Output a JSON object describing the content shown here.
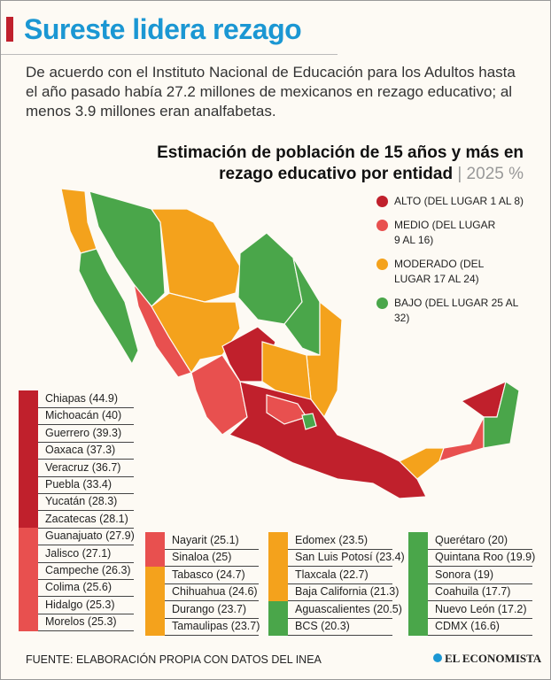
{
  "header": {
    "title": "Sureste lidera rezago",
    "intro": "De acuerdo con el Instituto Nacional de Educación para los Adultos hasta el año pasado había 27.2 millones de mexicanos en rezago educativo; al menos 3.9 millones eran analfabetas."
  },
  "map": {
    "title_line1": "Estimación de población de 15 años y más en",
    "title_line2": "rezago educativo por entidad",
    "title_year": "| 2025 %",
    "legend": [
      {
        "label": "ALTO (DEL LUGAR 1 AL 8)",
        "color": "#c0202c"
      },
      {
        "label": "MEDIO (DEL LUGAR 9 AL 16)",
        "color": "#e8504f"
      },
      {
        "label": "MODERADO (DEL LUGAR 17 AL 24)",
        "color": "#f4a21c"
      },
      {
        "label": "BAJO (DEL LUGAR 25 AL 32)",
        "color": "#4aa64a"
      }
    ]
  },
  "ranking": [
    {
      "label": "Chiapas (44.9)",
      "value": 44.9,
      "color": "#c0202c"
    },
    {
      "label": "Michoacán (40)",
      "value": 40,
      "color": "#c0202c"
    },
    {
      "label": "Guerrero (39.3)",
      "value": 39.3,
      "color": "#c0202c"
    },
    {
      "label": "Oaxaca (37.3)",
      "value": 37.3,
      "color": "#c0202c"
    },
    {
      "label": "Veracruz (36.7)",
      "value": 36.7,
      "color": "#c0202c"
    },
    {
      "label": "Puebla (33.4)",
      "value": 33.4,
      "color": "#c0202c"
    },
    {
      "label": "Yucatán (28.3)",
      "value": 28.3,
      "color": "#c0202c"
    },
    {
      "label": "Zacatecas (28.1)",
      "value": 28.1,
      "color": "#c0202c"
    },
    {
      "label": "Guanajuato (27.9)",
      "value": 27.9,
      "color": "#e8504f"
    },
    {
      "label": "Jalisco (27.1)",
      "value": 27.1,
      "color": "#e8504f"
    },
    {
      "label": "Campeche (26.3)",
      "value": 26.3,
      "color": "#e8504f"
    },
    {
      "label": "Colima (25.6)",
      "value": 25.6,
      "color": "#e8504f"
    },
    {
      "label": "Hidalgo (25.3)",
      "value": 25.3,
      "color": "#e8504f"
    },
    {
      "label": "Morelos (25.3)",
      "value": 25.3,
      "color": "#e8504f"
    },
    {
      "label": "Nayarit (25.1)",
      "value": 25.1,
      "color": "#e8504f"
    },
    {
      "label": "Sinaloa (25)",
      "value": 25,
      "color": "#e8504f"
    },
    {
      "label": "Tabasco (24.7)",
      "value": 24.7,
      "color": "#f4a21c"
    },
    {
      "label": "Chihuahua (24.6)",
      "value": 24.6,
      "color": "#f4a21c"
    },
    {
      "label": "Durango (23.7)",
      "value": 23.7,
      "color": "#f4a21c"
    },
    {
      "label": "Tamaulipas (23.7)",
      "value": 23.7,
      "color": "#f4a21c"
    },
    {
      "label": "Edomex (23.5)",
      "value": 23.5,
      "color": "#f4a21c"
    },
    {
      "label": "San Luis Potosí (23.4)",
      "value": 23.4,
      "color": "#f4a21c"
    },
    {
      "label": "Tlaxcala (22.7)",
      "value": 22.7,
      "color": "#f4a21c"
    },
    {
      "label": "Baja California (21.3)",
      "value": 21.3,
      "color": "#f4a21c"
    },
    {
      "label": "Aguascalientes (20.5)",
      "value": 20.5,
      "color": "#4aa64a"
    },
    {
      "label": "BCS (20.3)",
      "value": 20.3,
      "color": "#4aa64a"
    },
    {
      "label": "Querétaro (20)",
      "value": 20,
      "color": "#4aa64a"
    },
    {
      "label": "Quintana Roo (19.9)",
      "value": 19.9,
      "color": "#4aa64a"
    },
    {
      "label": "Sonora (19)",
      "value": 19,
      "color": "#4aa64a"
    },
    {
      "label": "Coahuila (17.7)",
      "value": 17.7,
      "color": "#4aa64a"
    },
    {
      "label": "Nuevo León (17.2)",
      "value": 17.2,
      "color": "#4aa64a"
    },
    {
      "label": "CDMX (16.6)",
      "value": 16.6,
      "color": "#4aa64a"
    }
  ],
  "footer": {
    "source": "FUENTE: ELABORACIÓN PROPIA CON DATOS DEL INEA",
    "logo": "EL ECONOMISTA"
  }
}
